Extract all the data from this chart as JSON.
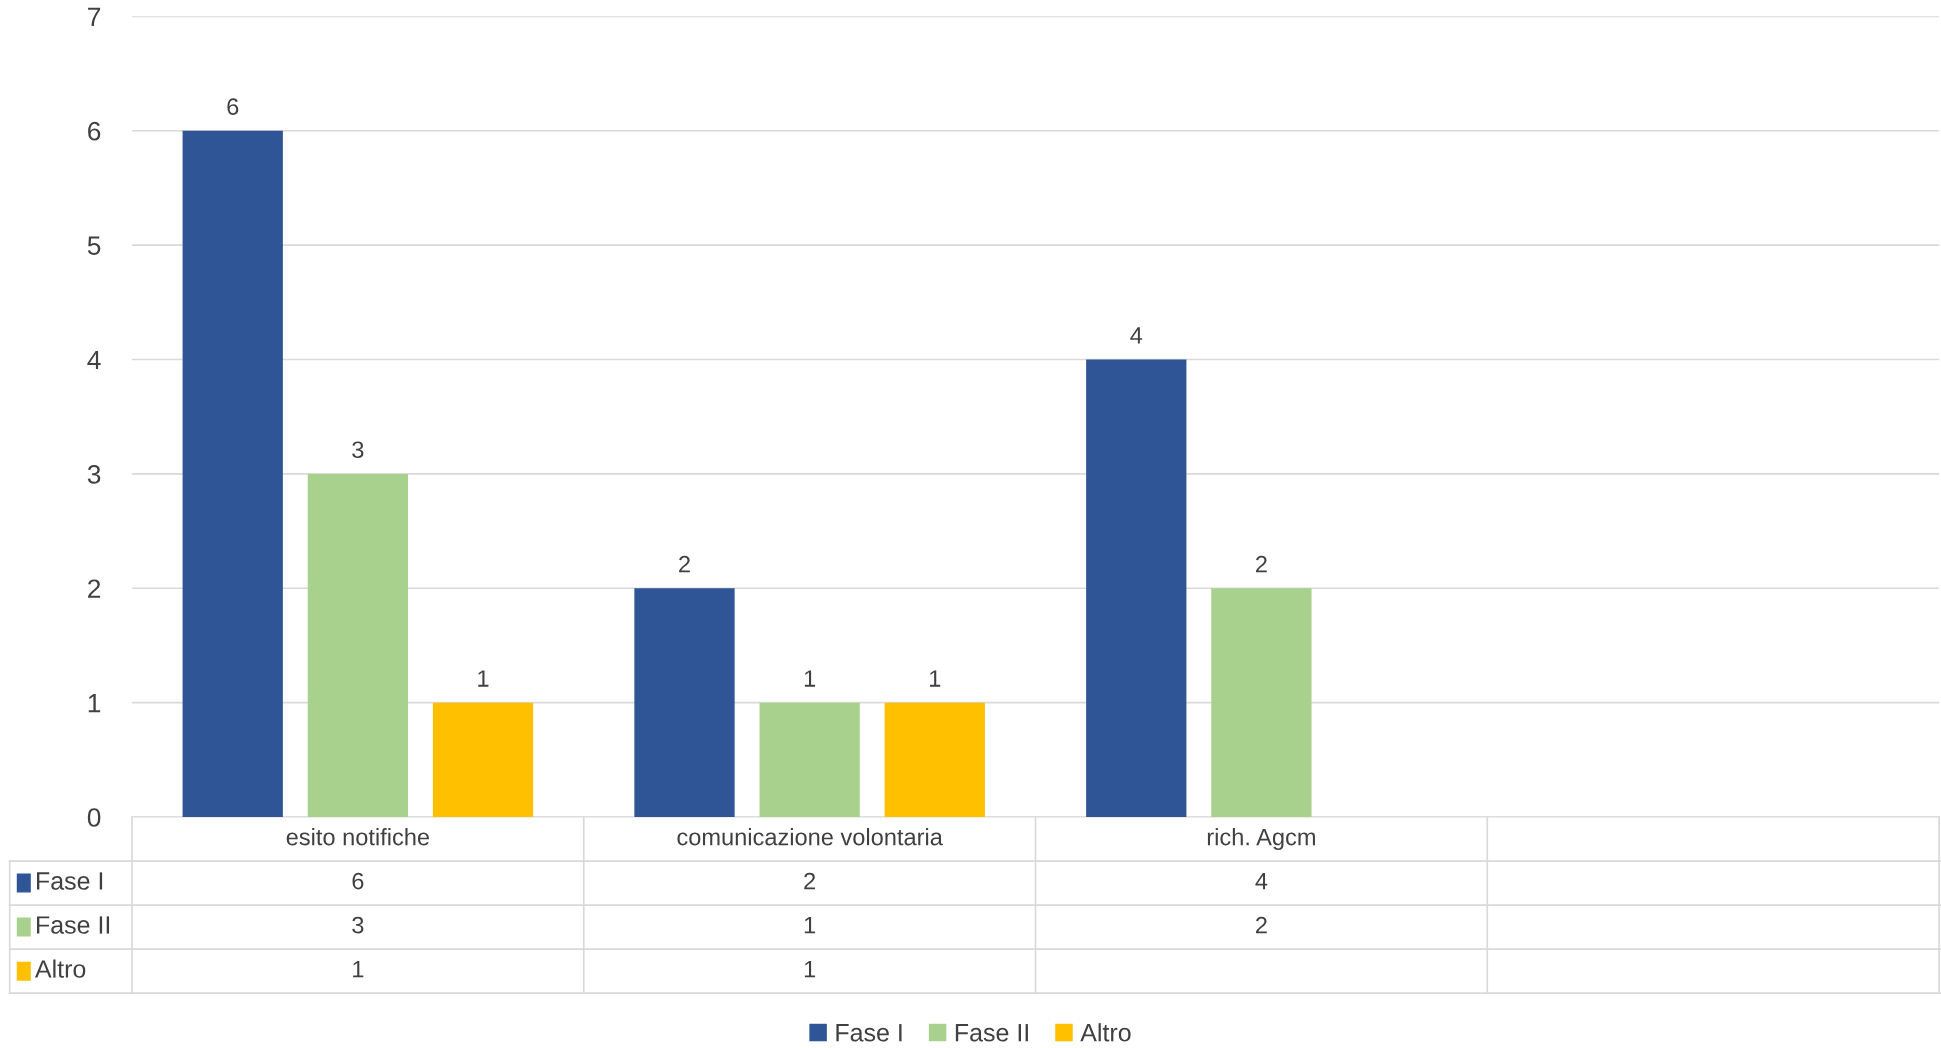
{
  "chart_data": {
    "type": "bar",
    "categories": [
      "esito notifiche",
      "comunicazione volontaria",
      "rich. Agcm",
      null
    ],
    "series": [
      {
        "name": "Fase I",
        "color": "#2f5597",
        "values": [
          6,
          2,
          4,
          null
        ],
        "value_labels": [
          "6",
          "2",
          "4",
          null
        ]
      },
      {
        "name": "Fase II",
        "color": "#a9d18e",
        "values": [
          3,
          1,
          2,
          null
        ],
        "value_labels": [
          "3",
          "1",
          "2",
          null
        ]
      },
      {
        "name": "Altro",
        "color": "#ffc000",
        "values": [
          1,
          1,
          null,
          null
        ],
        "value_labels": [
          "1",
          "1",
          null,
          null
        ]
      }
    ],
    "ylim": [
      0,
      7
    ],
    "yticks": [
      0,
      1,
      2,
      3,
      4,
      5,
      6,
      7
    ],
    "grid": "y",
    "legend": "bottom",
    "data_labels": true,
    "annotations": [
      "6",
      "2",
      "4",
      "3",
      "1",
      "2",
      "1",
      "1"
    ]
  }
}
